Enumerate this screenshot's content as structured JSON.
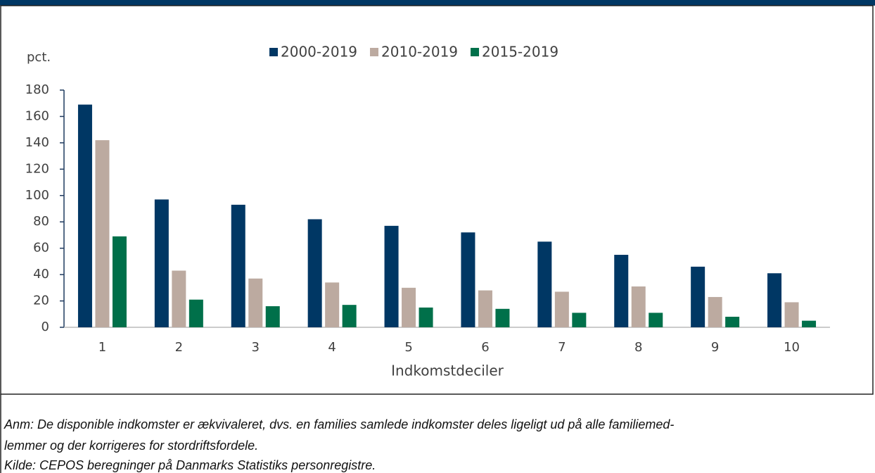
{
  "chart_data": {
    "type": "bar",
    "y_axis_label": "pct.",
    "x_axis_label": "Indkomstdeciler",
    "categories": [
      "1",
      "2",
      "3",
      "4",
      "5",
      "6",
      "7",
      "8",
      "9",
      "10"
    ],
    "series": [
      {
        "name": "2000-2019",
        "color": "#003764",
        "values": [
          169,
          97,
          93,
          82,
          77,
          72,
          65,
          55,
          46,
          41
        ]
      },
      {
        "name": "2010-2019",
        "color": "#bcaaa0",
        "values": [
          142,
          43,
          37,
          34,
          30,
          28,
          27,
          31,
          23,
          19
        ]
      },
      {
        "name": "2015-2019",
        "color": "#00704a",
        "values": [
          69,
          21,
          16,
          17,
          15,
          14,
          11,
          11,
          8,
          5
        ]
      }
    ],
    "ylim": [
      0,
      180
    ],
    "yticks": [
      0,
      20,
      40,
      60,
      80,
      100,
      120,
      140,
      160,
      180
    ],
    "notes": [
      "Anm: De disponible indkomster er ækvivaleret, dvs. en families samlede indkomster deles ligeligt ud på alle familiemed-",
      "lemmer og der korrigeres for stordriftsfordele.",
      "Kilde: CEPOS beregninger på Danmarks Statistiks personregistre."
    ]
  }
}
